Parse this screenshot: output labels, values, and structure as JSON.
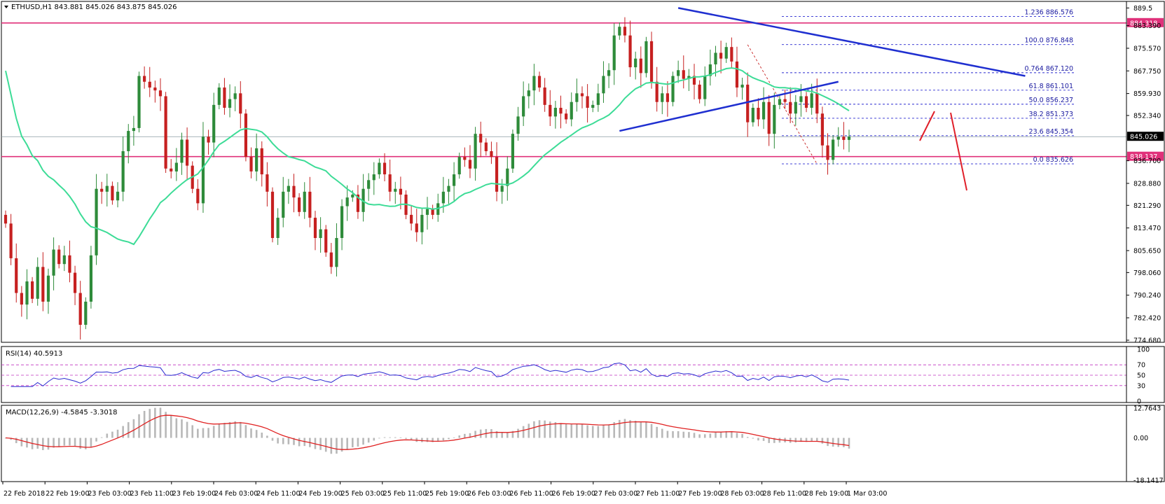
{
  "header": {
    "symbol_line": "ETHUSD,H1  843.881 845.026 843.875 845.026"
  },
  "colors": {
    "bull": "#2e8b3a",
    "bear": "#c62020",
    "ma": "#3ddc97",
    "trend": "#1f2fd0",
    "level": "#e0317a",
    "fib": "#2a2ad0",
    "rsi": "#2a2ad0",
    "macd_signal": "#e02020",
    "macd_hist": "#b8b8b8",
    "arrow": "#e0202a",
    "current_price_line": "#8a9aa2"
  },
  "chart_data": [
    {
      "type": "candlestick",
      "title": "ETHUSD,H1",
      "ohlc_header": {
        "open": 843.881,
        "high": 845.026,
        "low": 843.875,
        "close": 845.026
      },
      "ylim": [
        774.68,
        890.8
      ],
      "price_ticks": [
        "889.5",
        "883.390",
        "875.570",
        "867.750",
        "859.930",
        "852.340",
        "845.026",
        "838.137",
        "836.700",
        "828.880",
        "821.290",
        "813.470",
        "805.650",
        "798.060",
        "790.240",
        "782.420",
        "774.680"
      ],
      "current_price": "845.026",
      "level_labels": {
        "top": "884.318",
        "bottom": "838.137"
      },
      "horizontal_levels": [
        884.318,
        838.137
      ],
      "x_tick_labels": [
        "22 Feb 2018",
        "22 Feb 19:00",
        "23 Feb 03:00",
        "23 Feb 11:00",
        "23 Feb 19:00",
        "24 Feb 03:00",
        "24 Feb 11:00",
        "24 Feb 19:00",
        "25 Feb 03:00",
        "25 Feb 11:00",
        "25 Feb 19:00",
        "26 Feb 03:00",
        "26 Feb 11:00",
        "26 Feb 19:00",
        "27 Feb 03:00",
        "27 Feb 11:00",
        "27 Feb 19:00",
        "28 Feb 03:00",
        "28 Feb 11:00",
        "28 Feb 19:00",
        "1 Mar 03:00"
      ],
      "closes": [
        815.0,
        803.0,
        791.0,
        787.0,
        795.0,
        789.0,
        800.0,
        788.0,
        797.0,
        806.0,
        801.0,
        804.0,
        798.0,
        791.0,
        780.0,
        788.0,
        804.0,
        827.0,
        826.0,
        828.0,
        823.0,
        826.0,
        840.0,
        847.0,
        848.0,
        866.0,
        864.0,
        862.0,
        861.0,
        859.0,
        834.0,
        833.0,
        836.0,
        844.0,
        835.0,
        827.0,
        822.0,
        845.0,
        843.0,
        856.0,
        862.0,
        855.0,
        858.0,
        860.0,
        853.0,
        838.0,
        833.0,
        841.0,
        832.0,
        826.0,
        810.0,
        817.0,
        826.0,
        828.0,
        824.0,
        819.0,
        826.0,
        817.0,
        810.0,
        813.0,
        805.0,
        800.0,
        810.0,
        821.0,
        824.0,
        825.0,
        819.0,
        827.0,
        830.0,
        832.0,
        836.0,
        832.0,
        826.0,
        827.0,
        825.0,
        818.0,
        815.0,
        812.0,
        818.0,
        820.0,
        818.0,
        822.0,
        826.0,
        828.0,
        832.0,
        838.0,
        837.0,
        834.0,
        846.0,
        843.0,
        840.0,
        838.0,
        826.0,
        828.0,
        834.0,
        846.0,
        852.0,
        859.0,
        861.0,
        866.0,
        862.0,
        856.0,
        852.0,
        855.0,
        853.0,
        851.0,
        857.0,
        860.0,
        859.0,
        855.0,
        856.0,
        860.0,
        866.0,
        868.0,
        880.0,
        883.0,
        880.0,
        869.0,
        872.0,
        867.0,
        878.0,
        864.0,
        857.0,
        860.0,
        857.0,
        866.0,
        868.0,
        865.0,
        866.0,
        863.0,
        858.0,
        866.0,
        870.0,
        874.0,
        872.0,
        876.0,
        871.0,
        862.0,
        863.0,
        850.0,
        855.0,
        851.0,
        857.0,
        846.0,
        856.0,
        858.0,
        857.0,
        853.0,
        857.0,
        859.0,
        855.0,
        860.0,
        853.0,
        842.0,
        837.0,
        844.0,
        845.0,
        843.9,
        845.026
      ],
      "ma_period_note": "",
      "fib_levels": [
        {
          "ratio": "1.236",
          "price": "886.576"
        },
        {
          "ratio": "100.0",
          "price": "876.848"
        },
        {
          "ratio": "0.764",
          "price": "867.120"
        },
        {
          "ratio": "61.8",
          "price": "861.101"
        },
        {
          "ratio": "50.0",
          "price": "856.237"
        },
        {
          "ratio": "38.2",
          "price": "851.373"
        },
        {
          "ratio": "23.6",
          "price": "845.354"
        },
        {
          "ratio": "0.0",
          "price": "835.626"
        }
      ]
    },
    {
      "type": "line",
      "title": "RSI(14) 40.5913",
      "ylim": [
        0,
        100
      ],
      "y_ticks": [
        "100",
        "70",
        "50",
        "30",
        "0"
      ],
      "levels": [
        70,
        50,
        30
      ],
      "current": 40.5913
    },
    {
      "type": "bar",
      "title": "MACD(12,26,9) -4.5845 -3.3018",
      "ylim": [
        -18.1417,
        12.7643
      ],
      "y_ticks": [
        "12.7643",
        "0.00",
        "-18.1417"
      ],
      "macd": -4.5845,
      "signal": -3.3018
    }
  ]
}
